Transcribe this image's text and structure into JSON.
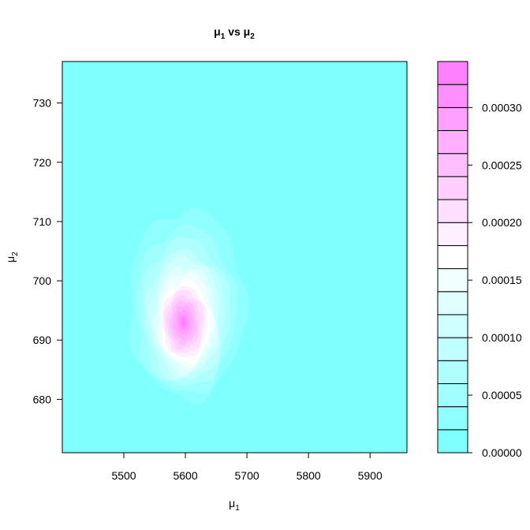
{
  "chart_data": {
    "type": "heatmap",
    "title": {
      "symbol": "μ",
      "sub1": "1",
      "mid": " vs ",
      "sub2": "2"
    },
    "xlabel": {
      "symbol": "μ",
      "sub": "1"
    },
    "ylabel": {
      "symbol": "μ",
      "sub": "2"
    },
    "xlim": [
      5400,
      5960
    ],
    "ylim": [
      671,
      737
    ],
    "x_ticks": [
      "5500",
      "5600",
      "5700",
      "5800",
      "5900"
    ],
    "x_tick_values": [
      5500,
      5600,
      5700,
      5800,
      5900
    ],
    "y_ticks": [
      "680",
      "690",
      "700",
      "710",
      "720",
      "730"
    ],
    "y_tick_values": [
      680,
      690,
      700,
      710,
      720,
      730
    ],
    "peak": {
      "x": 5597,
      "y": 693,
      "density": 0.00034
    },
    "density_regions": [
      {
        "level": 1e-05,
        "center": [
          5605,
          697
        ],
        "rx": 115,
        "ry": 19
      },
      {
        "level": 3e-05,
        "center": [
          5602,
          696
        ],
        "rx": 95,
        "ry": 16
      },
      {
        "level": 5e-05,
        "center": [
          5600,
          695
        ],
        "rx": 82,
        "ry": 14
      },
      {
        "level": 7e-05,
        "center": [
          5600,
          694.5
        ],
        "rx": 72,
        "ry": 12.5
      },
      {
        "level": 9e-05,
        "center": [
          5600,
          694
        ],
        "rx": 64,
        "ry": 11
      },
      {
        "level": 0.00011,
        "center": [
          5600,
          694
        ],
        "rx": 56,
        "ry": 10
      },
      {
        "level": 0.00013,
        "center": [
          5600,
          693.5
        ],
        "rx": 50,
        "ry": 9
      },
      {
        "level": 0.00015,
        "center": [
          5600,
          693.5
        ],
        "rx": 45,
        "ry": 8
      },
      {
        "level": 0.00017,
        "center": [
          5600,
          693
        ],
        "rx": 40,
        "ry": 7
      },
      {
        "level": 0.00019,
        "center": [
          5598,
          693
        ],
        "rx": 36,
        "ry": 6
      },
      {
        "level": 0.00021,
        "center": [
          5598,
          693
        ],
        "rx": 32,
        "ry": 5.3
      },
      {
        "level": 0.00023,
        "center": [
          5597,
          693
        ],
        "rx": 27,
        "ry": 4.5
      },
      {
        "level": 0.00025,
        "center": [
          5597,
          693
        ],
        "rx": 22,
        "ry": 3.7
      },
      {
        "level": 0.00027,
        "center": [
          5597,
          693
        ],
        "rx": 17,
        "ry": 2.9
      },
      {
        "level": 0.00029,
        "center": [
          5597,
          693
        ],
        "rx": 12,
        "ry": 2.1
      },
      {
        "level": 0.00031,
        "center": [
          5597,
          693
        ],
        "rx": 7,
        "ry": 1.3
      },
      {
        "level": 0.00033,
        "center": [
          5597,
          693
        ],
        "rx": 3.5,
        "ry": 0.7
      }
    ],
    "colorbar": {
      "range": [
        0,
        0.00034
      ],
      "breaks": [
        0,
        2e-05,
        4e-05,
        6e-05,
        8e-05,
        0.0001,
        0.00012,
        0.00014,
        0.00016,
        0.00018,
        0.0002,
        0.00022,
        0.00024,
        0.00026,
        0.00028,
        0.0003,
        0.00032,
        0.00034
      ],
      "colors": [
        "#80FFFF",
        "#8FFFFF",
        "#9FFFFF",
        "#AFFFFF",
        "#BFFFFF",
        "#CFFFFF",
        "#DFFFFF",
        "#EFFFFF",
        "#FFFFFF",
        "#FFEFFF",
        "#FFDFFF",
        "#FFCFFF",
        "#FFBFFF",
        "#FFAFFF",
        "#FF9FFF",
        "#FF8FFF",
        "#FF80FF"
      ],
      "tick_labels": [
        "0.00000",
        "0.00005",
        "0.00010",
        "0.00015",
        "0.00020",
        "0.00025",
        "0.00030"
      ],
      "tick_values": [
        0,
        5e-05,
        0.0001,
        0.00015,
        0.0002,
        0.00025,
        0.0003
      ]
    },
    "grid": false,
    "legend": "right"
  }
}
